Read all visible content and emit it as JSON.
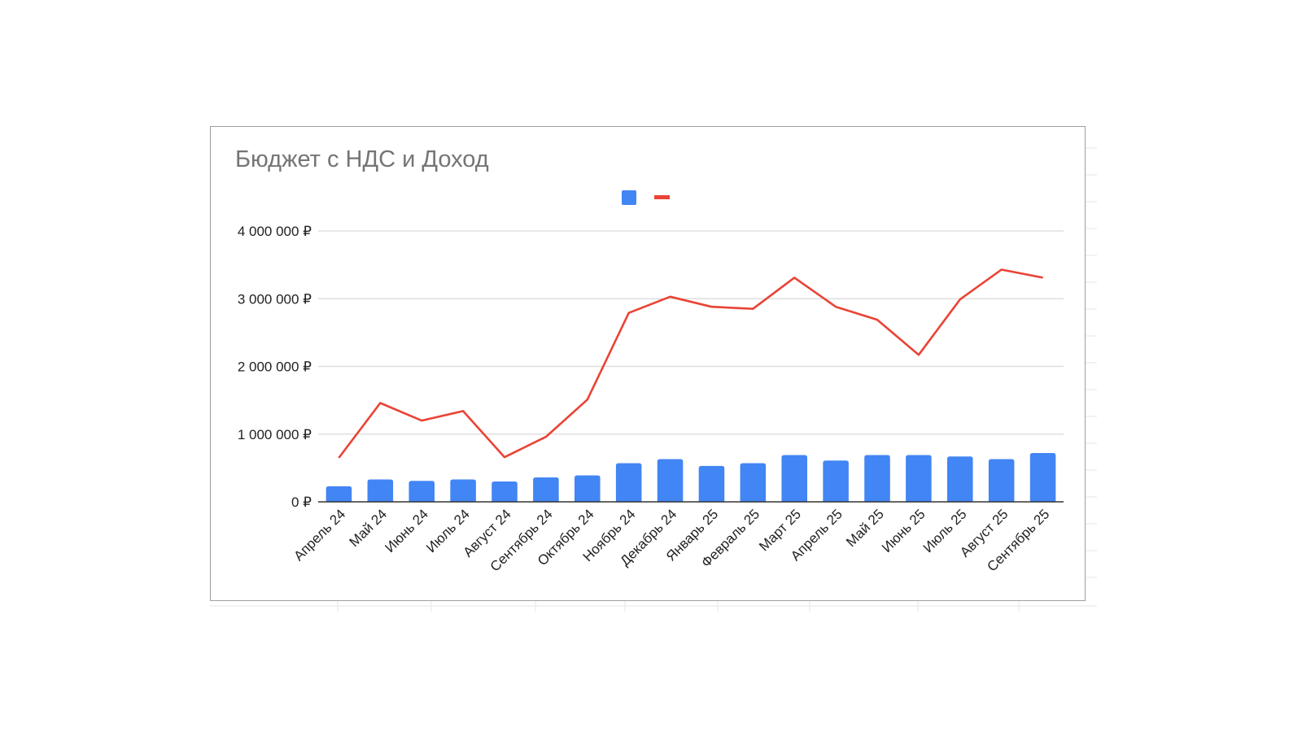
{
  "chart_data": {
    "type": "bar",
    "title": "Бюджет с НДС и Доход",
    "xlabel": "",
    "ylabel": "",
    "categories": [
      "Апрель 24",
      "Май 24",
      "Июнь 24",
      "Июль 24",
      "Август 24",
      "Сентябрь 24",
      "Октябрь 24",
      "Ноябрь 24",
      "Декабрь 24",
      "Январь 25",
      "Февраль 25",
      "Март 25",
      "Апрель 25",
      "Май 25",
      "Июнь 25",
      "Июль 25",
      "Август 25",
      "Сентябрь 25"
    ],
    "series": [
      {
        "type": "bar",
        "color": "#4285f4",
        "values": [
          230000,
          330000,
          310000,
          330000,
          300000,
          360000,
          390000,
          570000,
          630000,
          530000,
          570000,
          690000,
          610000,
          690000,
          690000,
          670000,
          630000,
          720000
        ]
      },
      {
        "type": "line",
        "color": "#ea4335",
        "values": [
          650000,
          1460000,
          1200000,
          1340000,
          660000,
          960000,
          1510000,
          2790000,
          3030000,
          2880000,
          2850000,
          3310000,
          2880000,
          2690000,
          2170000,
          2990000,
          3430000,
          3310000
        ]
      }
    ],
    "ylim": [
      0,
      4000000
    ],
    "yticks": [
      0,
      1000000,
      2000000,
      3000000,
      4000000
    ],
    "ytick_labels": [
      "0 ₽",
      "1 000 000 ₽",
      "2 000 000 ₽",
      "3 000 000 ₽",
      "4 000 000 ₽"
    ],
    "grid": true,
    "legend": "top-center",
    "colors": {
      "gridline": "#d9d9d9",
      "axis": "#333333"
    }
  }
}
